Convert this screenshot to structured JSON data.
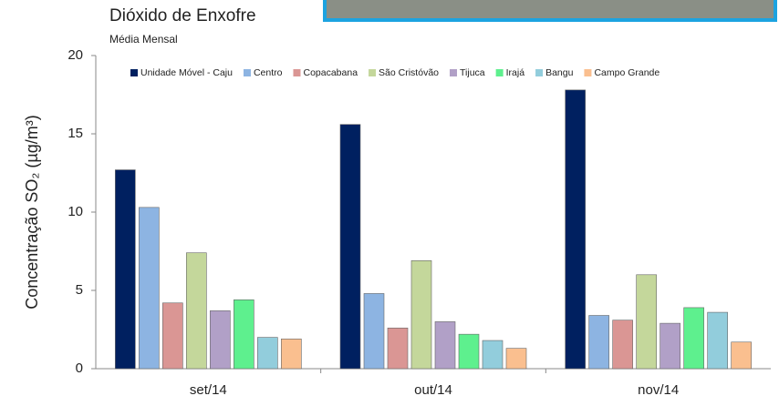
{
  "chart_data": {
    "type": "bar",
    "title": "Dióxido de Enxofre",
    "subtitle": "Média Mensal",
    "y_label": "Concentração SO₂ (µg/m³)",
    "categories": [
      "set/14",
      "out/14",
      "nov/14"
    ],
    "series": [
      {
        "name": "Unidade Móvel - Caju",
        "color": "#002060",
        "values": [
          12.7,
          15.6,
          17.8
        ]
      },
      {
        "name": "Centro",
        "color": "#8db4e2",
        "values": [
          10.3,
          4.8,
          3.4
        ]
      },
      {
        "name": "Copacabana",
        "color": "#da9694",
        "values": [
          4.2,
          2.6,
          3.1
        ]
      },
      {
        "name": "São Cristóvão",
        "color": "#c4d79b",
        "values": [
          7.4,
          6.9,
          6.0
        ]
      },
      {
        "name": "Tijuca",
        "color": "#b1a0c7",
        "values": [
          3.7,
          3.0,
          2.9
        ]
      },
      {
        "name": "Irajá",
        "color": "#5ef08e",
        "values": [
          4.4,
          2.2,
          3.9
        ]
      },
      {
        "name": "Bangu",
        "color": "#92cddc",
        "values": [
          2.0,
          1.8,
          3.6
        ]
      },
      {
        "name": "Campo Grande",
        "color": "#fabf8f",
        "values": [
          1.9,
          1.3,
          1.7
        ]
      }
    ],
    "ylim": [
      0,
      20
    ],
    "yticks": [
      0,
      5,
      10,
      15,
      20
    ],
    "grid": false,
    "legend": "top"
  }
}
